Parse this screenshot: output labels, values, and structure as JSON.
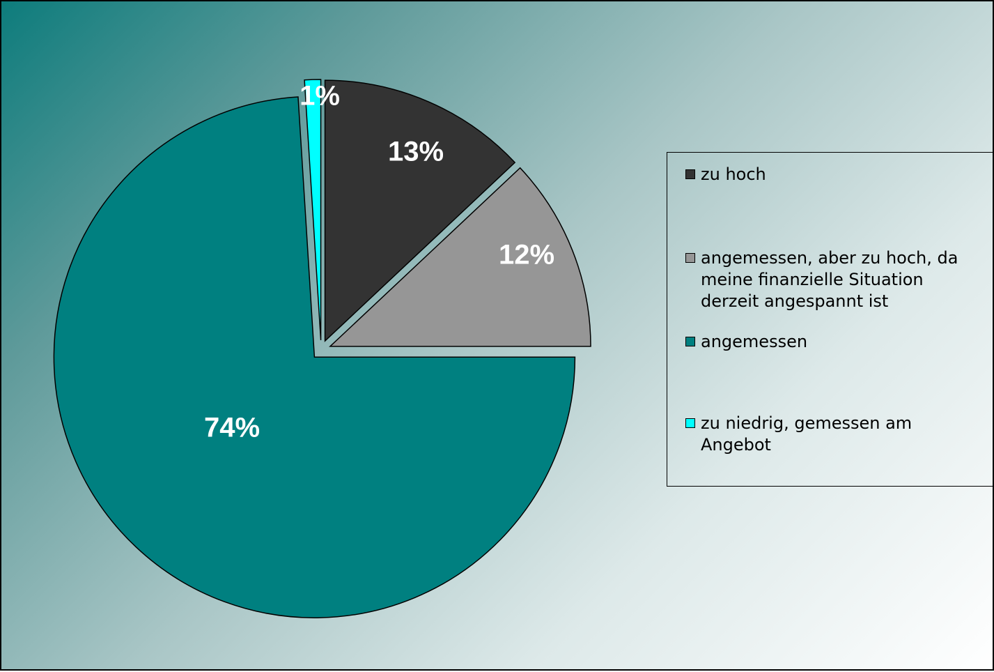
{
  "chart_data": {
    "type": "pie",
    "title": "",
    "slices": [
      {
        "label": "zu hoch",
        "value": 13,
        "display": "13%",
        "color": "#333333"
      },
      {
        "label": "angemessen, aber zu hoch, da meine finanzielle Situation derzeit angespannt ist",
        "value": 12,
        "display": "12%",
        "color": "#969696"
      },
      {
        "label": "angemessen",
        "value": 74,
        "display": "74%",
        "color": "#008080"
      },
      {
        "label": "zu niedrig, gemessen am Angebot",
        "value": 1,
        "display": "1%",
        "color": "#00ffff"
      }
    ],
    "legend_position": "right",
    "exploded": true
  }
}
